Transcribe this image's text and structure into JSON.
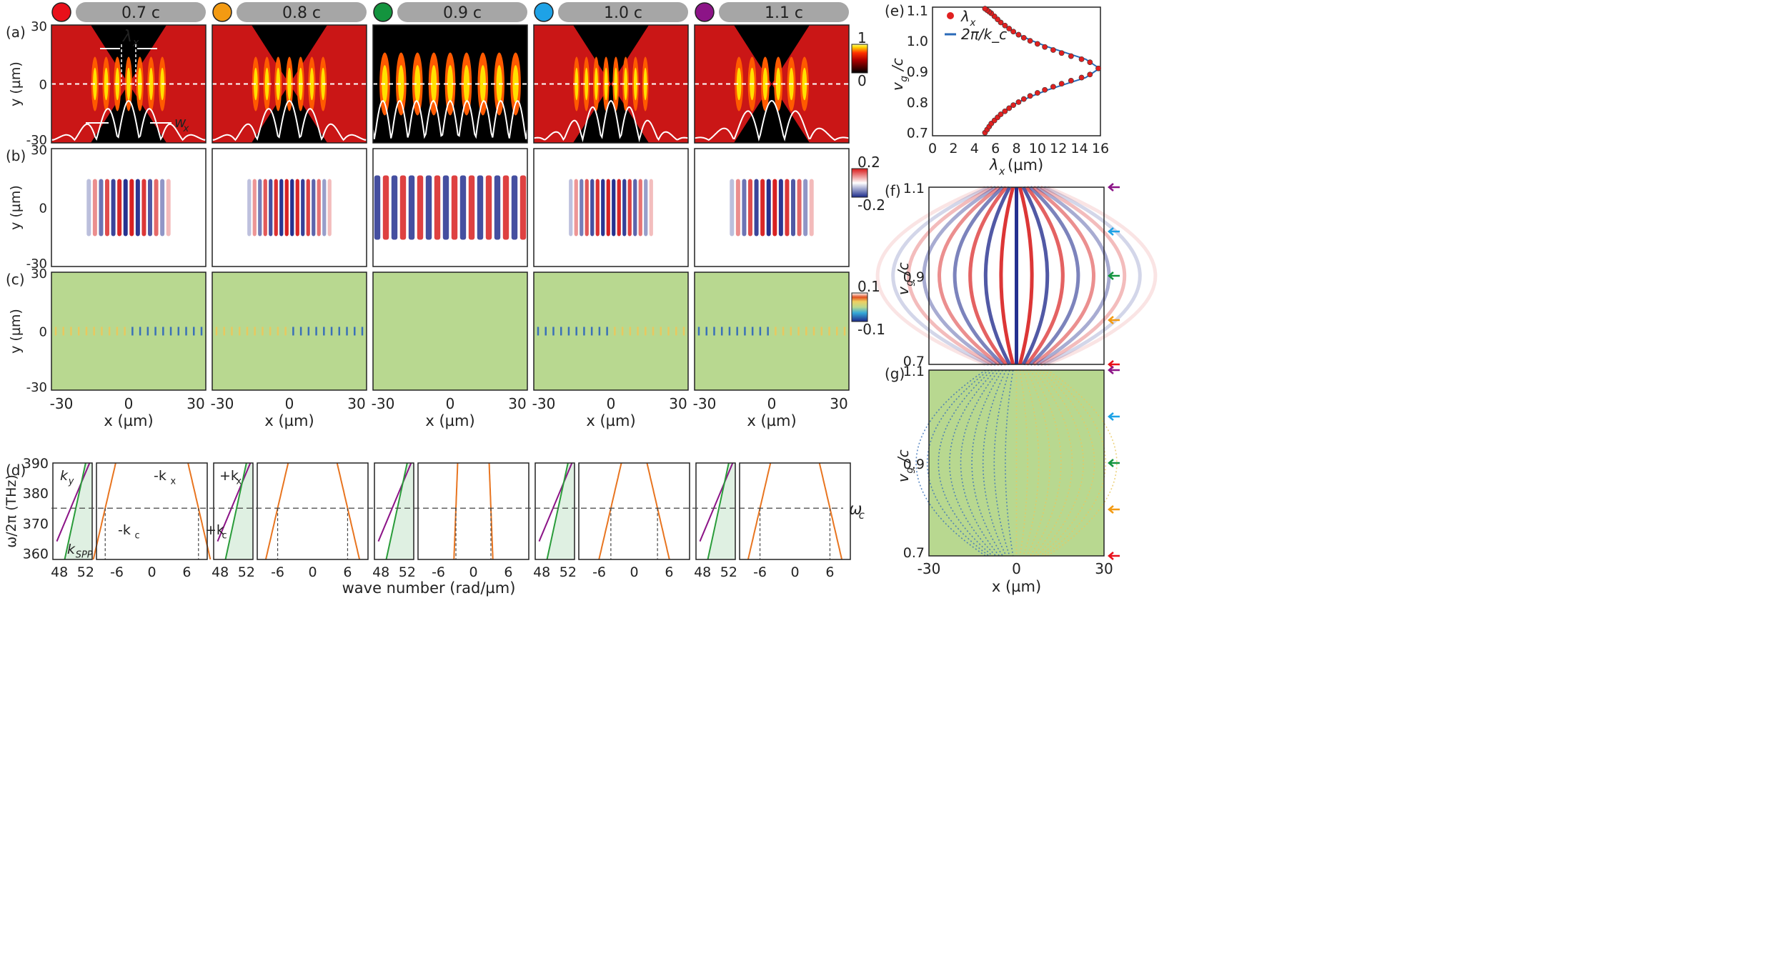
{
  "speed_labels": [
    "0.7 c",
    "0.8 c",
    "0.9 c",
    "1.0 c",
    "1.1 c"
  ],
  "speed_colors": [
    "#e8101a",
    "#f39a12",
    "#13943e",
    "#1ea2e6",
    "#8c1487"
  ],
  "panel_labels": {
    "a": "(a)",
    "b": "(b)",
    "c": "(c)",
    "d": "(d)",
    "e": "(e)",
    "f": "(f)",
    "g": "(g)"
  },
  "axes": {
    "y_um": "y (µm)",
    "x_um": "x (µm)",
    "omega": "ω/2π (THz)",
    "wavenumber": "wave number (rad/µm)",
    "lambda_x": "λ",
    "lambda_sub": "x",
    "lambda_unit": " (µm)",
    "vg": "v",
    "vg_sub": "g",
    "vg_tail": "/c"
  },
  "annotations": {
    "lambda": "λ",
    "lambda_sub": "x",
    "w": "w",
    "w_sub": "x",
    "ky": "k",
    "ky_sub": "y",
    "kspp": "k",
    "kspp_sub": "SPP",
    "mkx": "-k",
    "mkx_sub": "x",
    "pkx": "+k",
    "pkx_sub": "x",
    "mkc": "-k",
    "mkc_sub": "c",
    "pkc": "+k",
    "pkc_sub": "c",
    "omega_c": "ω",
    "omega_c_sub": "c"
  },
  "colorbars": {
    "a": {
      "max": "1",
      "min": "0"
    },
    "b": {
      "max": "0.2",
      "min": "-0.2"
    },
    "c": {
      "max": "0.1",
      "min": "-0.1"
    }
  },
  "ticks": {
    "y_field": [
      "30",
      "0",
      "-30"
    ],
    "x_field": [
      "-30",
      "0",
      "30"
    ],
    "omega": [
      "390",
      "380",
      "370",
      "360"
    ],
    "k_left": [
      "48",
      "52"
    ],
    "k_right": [
      "-6",
      "0",
      "6"
    ],
    "e_x": [
      "0",
      "2",
      "4",
      "6",
      "8",
      "10",
      "12",
      "14",
      "16"
    ],
    "e_y": [
      "1.1",
      "1.0",
      "0.9",
      "0.8",
      "0.7"
    ],
    "fg_y": [
      "1.1",
      "0.9",
      "0.7"
    ],
    "fg_x": [
      "-30",
      "0",
      "30"
    ]
  },
  "chart_data": [
    {
      "panel": "e",
      "type": "scatter",
      "xlabel": "λ_x (µm)",
      "ylabel": "v_g/c",
      "xlim": [
        0,
        16
      ],
      "ylim": [
        0.69,
        1.11
      ],
      "series": [
        {
          "name": "λ_x",
          "marker": "red-dot",
          "x": [
            5.0,
            5.2,
            5.4,
            5.6,
            5.9,
            6.2,
            6.5,
            6.9,
            7.3,
            7.7,
            8.2,
            8.7,
            9.3,
            10.0,
            10.7,
            11.5,
            12.3,
            13.2,
            14.2,
            15.0,
            15.8,
            15.0,
            14.2,
            13.2,
            12.3,
            11.5,
            10.7,
            10.0,
            9.3,
            8.7,
            8.2,
            7.7,
            7.3,
            6.9,
            6.5,
            6.2,
            5.9,
            5.6,
            5.4,
            5.2,
            5.0
          ],
          "y": [
            0.7,
            0.71,
            0.72,
            0.73,
            0.74,
            0.75,
            0.76,
            0.77,
            0.78,
            0.79,
            0.8,
            0.81,
            0.82,
            0.83,
            0.84,
            0.85,
            0.86,
            0.87,
            0.88,
            0.89,
            0.91,
            0.93,
            0.94,
            0.95,
            0.96,
            0.97,
            0.98,
            0.99,
            1.0,
            1.01,
            1.02,
            1.03,
            1.04,
            1.05,
            1.06,
            1.07,
            1.08,
            1.09,
            1.095,
            1.1,
            1.105
          ]
        },
        {
          "name": "2π/k_c",
          "marker": "blue-line",
          "x": [
            4.9,
            5.3,
            5.8,
            6.4,
            7.2,
            8.2,
            9.5,
            11.0,
            12.8,
            14.6,
            15.9,
            14.6,
            12.8,
            11.0,
            9.5,
            8.2,
            7.2,
            6.4,
            5.8,
            5.3,
            4.9
          ],
          "y": [
            0.7,
            0.72,
            0.74,
            0.76,
            0.78,
            0.8,
            0.82,
            0.84,
            0.86,
            0.88,
            0.91,
            0.94,
            0.96,
            0.98,
            1.0,
            1.02,
            1.04,
            1.06,
            1.08,
            1.095,
            1.11
          ]
        }
      ]
    },
    {
      "panel": "d",
      "type": "line",
      "xlabel": "wave number (rad/µm)",
      "ylabel": "ω/2π (THz)",
      "ylim": [
        358,
        390
      ],
      "omega_c": 375,
      "kc": [
        8,
        6,
        3,
        4,
        6
      ],
      "series": [
        {
          "name": "k_y",
          "color": "#8c1487",
          "x": [
            47.6,
            52.6
          ],
          "y": [
            364,
            390
          ]
        },
        {
          "name": "k_SPP",
          "color": "#2a9c3a",
          "x": [
            48.8,
            52.0
          ],
          "y": [
            358,
            390
          ]
        }
      ]
    }
  ]
}
